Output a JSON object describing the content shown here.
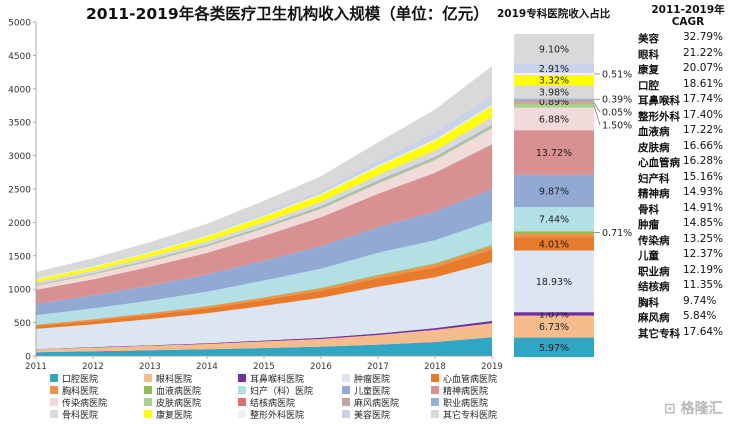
{
  "header": {
    "title": "2011-2019年各类医疗卫生机构收入规模（单位：亿元）",
    "share_title": "2019专科医院收入占比",
    "cagr_title_line1": "2011-2019年",
    "cagr_title_line2": "CAGR"
  },
  "watermark": "格隆汇",
  "chart_data": {
    "type": "area",
    "stacked": true,
    "x": [
      2011,
      2012,
      2013,
      2014,
      2015,
      2016,
      2017,
      2018,
      2019
    ],
    "ylim": [
      0,
      5000
    ],
    "yticks": [
      0,
      500,
      1000,
      1500,
      2000,
      2500,
      3000,
      3500,
      4000,
      4500,
      5000
    ],
    "grid": false,
    "legend_position": "bottom",
    "series": [
      {
        "name": "口腔医院",
        "color": "#2ea6c4",
        "values": [
          55,
          70,
          85,
          100,
          120,
          140,
          170,
          210,
          280
        ]
      },
      {
        "name": "眼科医院",
        "color": "#f7bc8c",
        "values": [
          45,
          56,
          68,
          80,
          98,
          115,
          145,
          180,
          210
        ]
      },
      {
        "name": "耳鼻喉科医院",
        "color": "#7030a0",
        "values": [
          5,
          7,
          9,
          11,
          14,
          17,
          22,
          28,
          35
        ]
      },
      {
        "name": "肿瘤医院",
        "color": "#dce5f2",
        "values": [
          300,
          340,
          390,
          450,
          520,
          600,
          700,
          760,
          880
        ]
      },
      {
        "name": "心血管病医院",
        "color": "#e87a2c",
        "values": [
          45,
          55,
          65,
          75,
          90,
          105,
          125,
          150,
          190
        ]
      },
      {
        "name": "胸科医院",
        "color": "#f0904a",
        "values": [
          18,
          20,
          23,
          26,
          30,
          34,
          40,
          45,
          50
        ]
      },
      {
        "name": "血液病医院",
        "color": "#8fbf4f",
        "values": [
          3,
          4,
          5,
          6,
          8,
          10,
          13,
          16,
          20
        ]
      },
      {
        "name": "妇产（科）医院",
        "color": "#b3dfe7",
        "values": [
          140,
          160,
          185,
          215,
          250,
          285,
          330,
          345,
          360
        ]
      },
      {
        "name": "儿童医院",
        "color": "#92aad3",
        "values": [
          170,
          195,
          225,
          260,
          300,
          340,
          385,
          430,
          480
        ]
      },
      {
        "name": "精神病医院",
        "color": "#d89090",
        "values": [
          210,
          240,
          280,
          320,
          370,
          430,
          500,
          580,
          665
        ]
      },
      {
        "name": "传染病医院",
        "color": "#f1dada",
        "values": [
          60,
          70,
          80,
          95,
          110,
          125,
          150,
          185,
          235
        ]
      },
      {
        "name": "皮肤病医院",
        "color": "#a9d18e",
        "values": [
          10,
          12,
          14,
          16,
          18,
          21,
          25,
          28,
          30
        ]
      },
      {
        "name": "结核病医院",
        "color": "#e06e6e",
        "values": [
          3,
          3,
          4,
          4,
          5,
          5,
          6,
          6,
          7
        ]
      },
      {
        "name": "麻风病医院",
        "color": "#c4a3a3",
        "values": [
          1,
          1,
          1,
          1,
          1,
          1,
          2,
          2,
          2
        ]
      },
      {
        "name": "职业病医院",
        "color": "#8eb4dd",
        "values": [
          6,
          7,
          8,
          9,
          11,
          13,
          15,
          17,
          19
        ]
      },
      {
        "name": "骨科医院",
        "color": "#d9d9d9",
        "values": [
          35,
          40,
          45,
          52,
          60,
          70,
          85,
          100,
          120
        ]
      },
      {
        "name": "康复医院",
        "color": "#ffff00",
        "values": [
          40,
          50,
          60,
          70,
          85,
          100,
          120,
          140,
          160
        ]
      },
      {
        "name": "整形外科医院",
        "color": "#f2f2f2",
        "values": [
          10,
          11,
          12,
          13,
          14,
          15,
          17,
          18,
          19
        ]
      },
      {
        "name": "美容医院",
        "color": "#c9d3ea",
        "values": [
          12,
          16,
          21,
          28,
          40,
          55,
          80,
          110,
          140
        ]
      },
      {
        "name": "其它专科医院",
        "color": "#d9d9d9",
        "values": [
          90,
          105,
          125,
          150,
          180,
          210,
          270,
          340,
          440
        ]
      }
    ],
    "share_2019": [
      {
        "name": "口腔医院",
        "value": 5.97,
        "label": "5.97%",
        "label_pos": "inside"
      },
      {
        "name": "眼科医院",
        "value": 6.73,
        "label": "6.73%",
        "label_pos": "inside"
      },
      {
        "name": "耳鼻喉科医院",
        "value": 1.07,
        "label": "1.07%",
        "label_pos": "inside"
      },
      {
        "name": "肿瘤医院",
        "value": 18.93,
        "label": "18.93%",
        "label_pos": "inside"
      },
      {
        "name": "心血管病医院",
        "value": 4.01,
        "label": "4.01%",
        "label_pos": "inside"
      },
      {
        "name": "胸科医院",
        "value": 1.2,
        "label": "",
        "label_pos": "none"
      },
      {
        "name": "血液病医院",
        "value": 0.71,
        "label": "0.71%",
        "label_pos": "right"
      },
      {
        "name": "妇产（科）医院",
        "value": 7.44,
        "label": "7.44%",
        "label_pos": "inside"
      },
      {
        "name": "儿童医院",
        "value": 9.87,
        "label": "9.87%",
        "label_pos": "inside"
      },
      {
        "name": "精神病医院",
        "value": 13.72,
        "label": "13.72%",
        "label_pos": "inside"
      },
      {
        "name": "传染病医院",
        "value": 6.88,
        "label": "6.88%",
        "label_pos": "inside"
      },
      {
        "name": "皮肤病医院",
        "value": 1.5,
        "label": "1.50%",
        "label_pos": "right"
      },
      {
        "name": "结核病医院",
        "value": 0.05,
        "label": "0.05%",
        "label_pos": "right"
      },
      {
        "name": "麻风病医院",
        "value": 0.89,
        "label": "0.89%",
        "label_pos": "inside"
      },
      {
        "name": "职业病医院",
        "value": 0.39,
        "label": "0.39%",
        "label_pos": "right"
      },
      {
        "name": "骨科医院",
        "value": 3.98,
        "label": "3.98%",
        "label_pos": "inside"
      },
      {
        "name": "康复医院",
        "value": 3.32,
        "label": "3.32%",
        "label_pos": "inside"
      },
      {
        "name": "整形外科医院",
        "value": 0.51,
        "label": "0.51%",
        "label_pos": "right"
      },
      {
        "name": "美容医院",
        "value": 2.91,
        "label": "2.91%",
        "label_pos": "inside"
      },
      {
        "name": "其它专科医院",
        "value": 9.1,
        "label": "9.10%",
        "label_pos": "inside"
      }
    ]
  },
  "cagr": [
    {
      "name": "美容",
      "value": "32.79%"
    },
    {
      "name": "眼科",
      "value": "21.22%"
    },
    {
      "name": "康复",
      "value": "20.07%"
    },
    {
      "name": "口腔",
      "value": "18.61%"
    },
    {
      "name": "耳鼻喉科",
      "value": "17.74%"
    },
    {
      "name": "整形外科",
      "value": "17.40%"
    },
    {
      "name": "血液病",
      "value": "17.22%"
    },
    {
      "name": "皮肤病",
      "value": "16.66%"
    },
    {
      "name": "心血管病",
      "value": "16.28%"
    },
    {
      "name": "妇产科",
      "value": "15.16%"
    },
    {
      "name": "精神病",
      "value": "14.93%"
    },
    {
      "name": "骨科",
      "value": "14.91%"
    },
    {
      "name": "肿瘤",
      "value": "14.85%"
    },
    {
      "name": "传染病",
      "value": "13.25%"
    },
    {
      "name": "儿童",
      "value": "12.37%"
    },
    {
      "name": "职业病",
      "value": "12.19%"
    },
    {
      "name": "结核病",
      "value": "11.35%"
    },
    {
      "name": "胸科",
      "value": "9.74%"
    },
    {
      "name": "麻风病",
      "value": "5.84%"
    },
    {
      "name": "其它专科",
      "value": "17.64%"
    }
  ],
  "legend": [
    {
      "name": "口腔医院",
      "color": "#2ea6c4"
    },
    {
      "name": "眼科医院",
      "color": "#f7bc8c"
    },
    {
      "name": "耳鼻喉科医院",
      "color": "#7030a0"
    },
    {
      "name": "肿瘤医院",
      "color": "#dce5f2"
    },
    {
      "name": "心血管病医院",
      "color": "#e87a2c"
    },
    {
      "name": "胸科医院",
      "color": "#f0904a"
    },
    {
      "name": "血液病医院",
      "color": "#8fbf4f"
    },
    {
      "name": "妇产（科）医院",
      "color": "#b3dfe7"
    },
    {
      "name": "儿童医院",
      "color": "#92aad3"
    },
    {
      "name": "精神病医院",
      "color": "#d89090"
    },
    {
      "name": "传染病医院",
      "color": "#f1dada"
    },
    {
      "name": "皮肤病医院",
      "color": "#a9d18e"
    },
    {
      "name": "结核病医院",
      "color": "#e06e6e"
    },
    {
      "name": "麻风病医院",
      "color": "#c4a3a3"
    },
    {
      "name": "职业病医院",
      "color": "#8eb4dd"
    },
    {
      "name": "骨科医院",
      "color": "#d9d9d9"
    },
    {
      "name": "康复医院",
      "color": "#ffff00"
    },
    {
      "name": "整形外科医院",
      "color": "#f2f2f2"
    },
    {
      "name": "美容医院",
      "color": "#c9d3ea"
    },
    {
      "name": "其它专科医院",
      "color": "#d9d9d9"
    }
  ]
}
